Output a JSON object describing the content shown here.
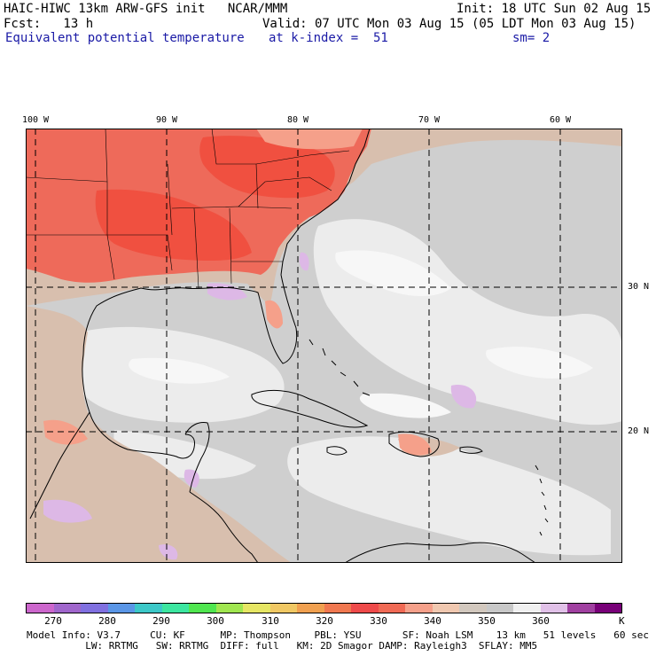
{
  "header": {
    "model_title": "HAIC-HIWC 13km ARW-GFS init   NCAR/MMM",
    "init": "Init: 18 UTC Sun 02 Aug 15",
    "fcst": "Fcst:   13 h",
    "valid": "Valid: 07 UTC Mon 03 Aug 15 (05 LDT Mon 03 Aug 15)",
    "field": "Equivalent potential temperature",
    "level": "at k-index =  51",
    "smoothing": "sm= 2"
  },
  "map": {
    "lon_labels": [
      "100 W",
      "90 W",
      "80 W",
      "70 W",
      "60 W"
    ],
    "lat_labels": [
      "30 N",
      "20 N"
    ]
  },
  "colorbar": {
    "colors": [
      "#cc66cc",
      "#a066cc",
      "#8070e0",
      "#5a96e6",
      "#3cc8c8",
      "#3ce6a0",
      "#50e650",
      "#a0e650",
      "#e6e664",
      "#f0c864",
      "#f0a050",
      "#f07850",
      "#ee4a4a",
      "#f06a55",
      "#f5a08a",
      "#f0c8b0",
      "#d2c8be",
      "#c8c8c8",
      "#f0f0f0",
      "#e1c1e8",
      "#a040a0",
      "#780078"
    ],
    "tick_labels": [
      "270",
      "280",
      "290",
      "300",
      "310",
      "320",
      "330",
      "340",
      "350",
      "360"
    ],
    "unit": "K"
  },
  "footer": {
    "line1": "Model Info: V3.7     CU: KF      MP: Thompson    PBL: YSU       SF: Noah LSM    13 km   51 levels   60 sec",
    "line2": "          LW: RRTMG   SW: RRTMG  DIFF: full   KM: 2D Smagor DAMP: Rayleigh3  SFLAY: MM5"
  }
}
